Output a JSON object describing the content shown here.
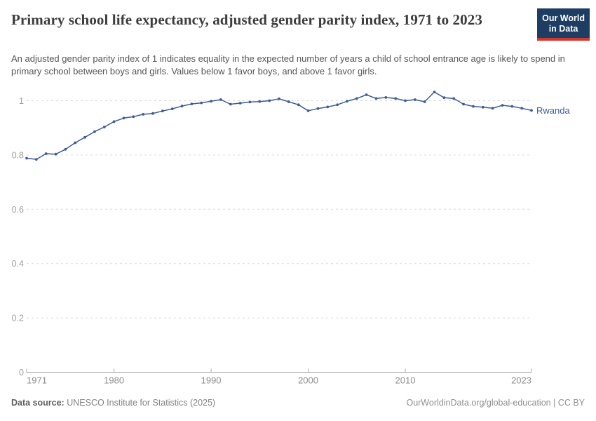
{
  "header": {
    "title": "Primary school life expectancy, adjusted gender parity index, 1971 to 2023",
    "subtitle": "An adjusted gender parity index of 1 indicates equality in the expected number of years a child of school entrance age is likely to spend in primary school between boys and girls. Values below 1 favor boys, and above 1 favor girls.",
    "logo": {
      "line1": "Our World",
      "line2": "in Data",
      "bg_color": "#1d3d63",
      "accent_color": "#d4382d"
    }
  },
  "chart_data": {
    "type": "line",
    "title": "Primary school life expectancy, adjusted gender parity index, 1971 to 2023",
    "xlabel": "",
    "ylabel": "",
    "xlim": [
      1971,
      2023
    ],
    "ylim": [
      0,
      1.04
    ],
    "x_ticks": [
      1971,
      1980,
      1990,
      2000,
      2010,
      2023
    ],
    "y_ticks": [
      0,
      0.2,
      0.4,
      0.6,
      0.8,
      1
    ],
    "grid": "horizontal-dashed",
    "legend": "end-of-line-label",
    "colors": {
      "line": "#3d5c99",
      "gridline": "#dcdcdc",
      "axis": "#a8a8a8",
      "y_tick_label": "#a0a0a0",
      "x_tick_label": "#8e8e8e"
    },
    "series": [
      {
        "name": "Rwanda",
        "color": "#3d5c99",
        "x": [
          1971,
          1972,
          1973,
          1974,
          1975,
          1976,
          1977,
          1978,
          1979,
          1980,
          1981,
          1982,
          1983,
          1984,
          1985,
          1986,
          1987,
          1988,
          1989,
          1990,
          1991,
          1992,
          1993,
          1994,
          1995,
          1996,
          1997,
          1998,
          1999,
          2000,
          2001,
          2002,
          2003,
          2004,
          2005,
          2006,
          2007,
          2008,
          2009,
          2010,
          2011,
          2012,
          2013,
          2014,
          2015,
          2016,
          2017,
          2018,
          2019,
          2020,
          2021,
          2022,
          2023
        ],
        "values": [
          0.788,
          0.784,
          0.805,
          0.803,
          0.821,
          0.845,
          0.865,
          0.886,
          0.903,
          0.923,
          0.936,
          0.941,
          0.95,
          0.953,
          0.962,
          0.97,
          0.98,
          0.988,
          0.992,
          0.998,
          1.004,
          0.987,
          0.991,
          0.995,
          0.997,
          1.0,
          1.007,
          0.996,
          0.985,
          0.963,
          0.971,
          0.977,
          0.985,
          0.998,
          1.008,
          1.022,
          1.008,
          1.012,
          1.008,
          1.0,
          1.004,
          0.996,
          1.032,
          1.011,
          1.008,
          0.987,
          0.979,
          0.976,
          0.972,
          0.983,
          0.979,
          0.972,
          0.964
        ]
      }
    ]
  },
  "footer": {
    "source_label": "Data source:",
    "source_text": "UNESCO Institute for Statistics (2025)",
    "link_text": "OurWorldinData.org/global-education | CC BY"
  }
}
